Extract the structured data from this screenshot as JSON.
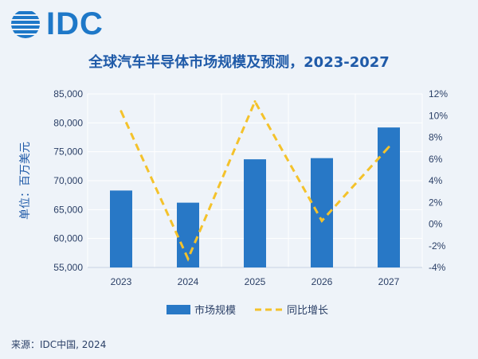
{
  "colors": {
    "background": "#eef3f9",
    "bar": "#2878c6",
    "line": "#f4c22b",
    "title": "#1f5aa8",
    "text": "#2a3f66",
    "logo": "#1e78c8"
  },
  "logo": {
    "text": "IDC",
    "icon": "globe-icon"
  },
  "source": "来源：IDC中国, 2024",
  "chart_data": {
    "type": "bar",
    "title": "全球汽车半导体市场规模及预测，2023-2027",
    "ylabel": "单位：百万美元",
    "categories": [
      "2023",
      "2024",
      "2025",
      "2026",
      "2027"
    ],
    "ylim": [
      55000,
      85000
    ],
    "y_ticks": [
      "55,000",
      "60,000",
      "65,000",
      "70,000",
      "75,000",
      "80,000",
      "85,000"
    ],
    "y2lim": [
      -4,
      12
    ],
    "y2_ticks": [
      "-4%",
      "-2%",
      "0%",
      "2%",
      "4%",
      "6%",
      "8%",
      "10%",
      "12%"
    ],
    "series": [
      {
        "name": "市场规模",
        "type": "bar",
        "axis": "left",
        "values": [
          68300,
          66200,
          73700,
          73900,
          79200
        ]
      },
      {
        "name": "同比增长",
        "type": "line",
        "style": "dashed",
        "axis": "right",
        "values": [
          10.4,
          -3.2,
          11.3,
          0.3,
          7.1
        ]
      }
    ],
    "legend_position": "bottom-center",
    "grid": true
  }
}
